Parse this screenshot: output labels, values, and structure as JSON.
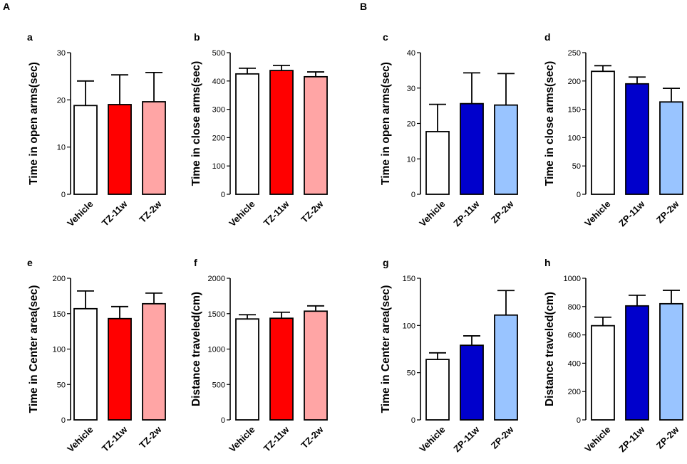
{
  "sections": [
    {
      "label": "A"
    },
    {
      "label": "B"
    }
  ],
  "colors": {
    "vehicle": "#ffffff",
    "tz_11w": "#ff0000",
    "tz_2w": "#ffa5a5",
    "zp_11w": "#0000cc",
    "zp_2w": "#99c4ff"
  },
  "chart_data": [
    {
      "panel": "a",
      "type": "bar",
      "ylabel": "Time in open arms(sec)",
      "ylim": [
        0,
        30
      ],
      "yticks": [
        0,
        10,
        20,
        30
      ],
      "categories": [
        "Vehicle",
        "TZ-11w",
        "TZ-2w"
      ],
      "values": [
        18.8,
        19.0,
        19.6
      ],
      "errors": [
        5.2,
        6.3,
        6.2
      ],
      "colors": [
        "#ffffff",
        "#ff0000",
        "#ffa5a5"
      ]
    },
    {
      "panel": "b",
      "type": "bar",
      "ylabel": "Time in close arms(sec)",
      "ylim": [
        0,
        500
      ],
      "yticks": [
        0,
        100,
        200,
        300,
        400,
        500
      ],
      "categories": [
        "Vehicle",
        "TZ-11w",
        "TZ-2w"
      ],
      "values": [
        425,
        437,
        415
      ],
      "errors": [
        20,
        18,
        17
      ],
      "colors": [
        "#ffffff",
        "#ff0000",
        "#ffa5a5"
      ]
    },
    {
      "panel": "c",
      "type": "bar",
      "ylabel": "Time in open arms(sec)",
      "ylim": [
        0,
        40
      ],
      "yticks": [
        0,
        10,
        20,
        30,
        40
      ],
      "categories": [
        "Vehicle",
        "ZP-11w",
        "ZP-2w"
      ],
      "values": [
        17.7,
        25.6,
        25.2
      ],
      "errors": [
        7.7,
        8.7,
        8.9
      ],
      "colors": [
        "#ffffff",
        "#0000cc",
        "#99c4ff"
      ]
    },
    {
      "panel": "d",
      "type": "bar",
      "ylabel": "Time in close arms(sec)",
      "ylim": [
        0,
        250
      ],
      "yticks": [
        0,
        50,
        100,
        150,
        200,
        250
      ],
      "categories": [
        "Vehicle",
        "ZP-11w",
        "ZP-2w"
      ],
      "values": [
        217,
        195,
        163
      ],
      "errors": [
        10,
        12,
        24
      ],
      "colors": [
        "#ffffff",
        "#0000cc",
        "#99c4ff"
      ]
    },
    {
      "panel": "e",
      "type": "bar",
      "ylabel": "Time in Center area(sec)",
      "ylim": [
        0,
        200
      ],
      "yticks": [
        0,
        50,
        100,
        150,
        200
      ],
      "categories": [
        "Vehicle",
        "TZ-11w",
        "TZ-2w"
      ],
      "values": [
        157,
        143,
        164
      ],
      "errors": [
        25,
        17,
        15
      ],
      "colors": [
        "#ffffff",
        "#ff0000",
        "#ffa5a5"
      ]
    },
    {
      "panel": "f",
      "type": "bar",
      "ylabel": "Distance traveled(cm)",
      "ylim": [
        0,
        2000
      ],
      "yticks": [
        0,
        500,
        1000,
        1500,
        2000
      ],
      "categories": [
        "Vehicle",
        "TZ-11w",
        "TZ-2w"
      ],
      "values": [
        1425,
        1435,
        1535
      ],
      "errors": [
        60,
        85,
        75
      ],
      "colors": [
        "#ffffff",
        "#ff0000",
        "#ffa5a5"
      ]
    },
    {
      "panel": "g",
      "type": "bar",
      "ylabel": "Time in Center area(sec)",
      "ylim": [
        0,
        150
      ],
      "yticks": [
        0,
        50,
        100,
        150
      ],
      "categories": [
        "Vehicle",
        "ZP-11w",
        "ZP-2w"
      ],
      "values": [
        64,
        79,
        111
      ],
      "errors": [
        7,
        10,
        26
      ],
      "colors": [
        "#ffffff",
        "#0000cc",
        "#99c4ff"
      ]
    },
    {
      "panel": "h",
      "type": "bar",
      "ylabel": "Distance traveled(cm)",
      "ylim": [
        0,
        1000
      ],
      "yticks": [
        0,
        200,
        400,
        600,
        800,
        1000
      ],
      "categories": [
        "Vehicle",
        "ZP-11w",
        "ZP-2w"
      ],
      "values": [
        665,
        805,
        820
      ],
      "errors": [
        60,
        75,
        95
      ],
      "colors": [
        "#ffffff",
        "#0000cc",
        "#99c4ff"
      ]
    }
  ]
}
